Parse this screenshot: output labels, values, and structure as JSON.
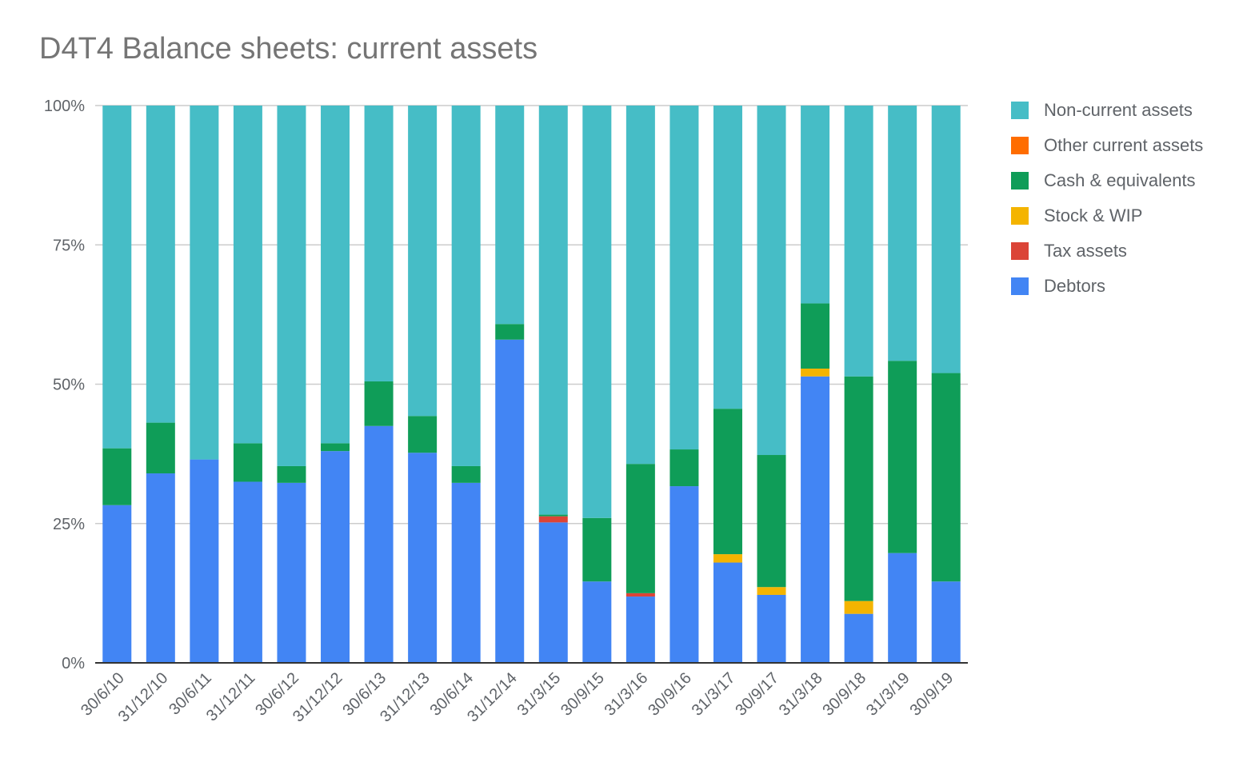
{
  "chart_data": {
    "type": "bar",
    "stacked": "percent",
    "title": "D4T4 Balance sheets: current assets",
    "xlabel": "",
    "ylabel": "",
    "ylim": [
      0,
      100
    ],
    "y_ticks": [
      "0%",
      "25%",
      "50%",
      "75%",
      "100%"
    ],
    "grid": true,
    "legend_position": "right",
    "categories": [
      "30/6/10",
      "31/12/10",
      "30/6/11",
      "31/12/11",
      "30/6/12",
      "31/12/12",
      "30/6/13",
      "31/12/13",
      "30/6/14",
      "31/12/14",
      "31/3/15",
      "30/9/15",
      "31/3/16",
      "30/9/16",
      "31/3/17",
      "30/9/17",
      "31/3/18",
      "30/9/18",
      "31/3/19",
      "30/9/19"
    ],
    "series": [
      {
        "name": "Debtors",
        "color": "#4285f4",
        "values": [
          28.3,
          34,
          36.5,
          32.5,
          32.3,
          38,
          42.5,
          37.7,
          32.3,
          58,
          25.2,
          14.6,
          11.9,
          31.7,
          18,
          12.2,
          51.4,
          8.8,
          19.7,
          14.6
        ]
      },
      {
        "name": "Tax assets",
        "color": "#db4437",
        "values": [
          0,
          0,
          0,
          0,
          0,
          0,
          0,
          0,
          0,
          0,
          1.1,
          0,
          0.6,
          0,
          0,
          0,
          0,
          0,
          0,
          0
        ]
      },
      {
        "name": "Stock & WIP",
        "color": "#f4b400",
        "values": [
          0,
          0,
          0,
          0,
          0,
          0,
          0,
          0,
          0,
          0,
          0,
          0,
          0,
          0,
          1.5,
          1.4,
          1.4,
          2.3,
          0,
          0
        ]
      },
      {
        "name": "Cash & equivalents",
        "color": "#0f9d58",
        "values": [
          10.2,
          9.1,
          0,
          6.9,
          3,
          1.4,
          8,
          6.6,
          3,
          2.8,
          0.3,
          11.4,
          23.2,
          6.6,
          26.1,
          23.7,
          11.7,
          40.3,
          34.5,
          37.4
        ]
      },
      {
        "name": "Other current assets",
        "color": "#ff6d00",
        "values": [
          0,
          0,
          0,
          0,
          0,
          0,
          0,
          0,
          0,
          0,
          0,
          0,
          0,
          0,
          0,
          0,
          0,
          0,
          0,
          0
        ]
      },
      {
        "name": "Non-current assets",
        "color": "#46bdc6",
        "values": [
          61.5,
          56.9,
          63.5,
          60.6,
          64.7,
          60.6,
          49.5,
          55.7,
          64.7,
          39.2,
          73.4,
          74,
          64.3,
          61.7,
          54.4,
          62.7,
          35.5,
          48.6,
          45.8,
          48
        ]
      }
    ],
    "legend_order": [
      "Non-current assets",
      "Other current assets",
      "Cash & equivalents",
      "Stock & WIP",
      "Tax assets",
      "Debtors"
    ]
  }
}
